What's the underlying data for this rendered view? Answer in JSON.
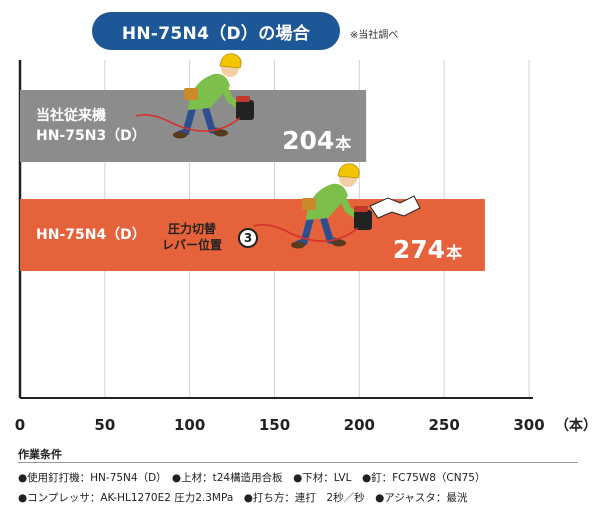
{
  "header": {
    "title": "HN-75N4（D）の場合",
    "source_note": "※当社調べ"
  },
  "colors": {
    "title_bg": "#1d5797",
    "bar_previous": "#8c8c8c",
    "bar_new": "#e6623b"
  },
  "icons": [
    "worker-with-nailer-icon",
    "worker-with-nailer-icon",
    "lever-position-3-badge"
  ],
  "chart_data": {
    "type": "bar",
    "orientation": "horizontal",
    "categories": [
      "当社従来機\nHN-75N3（D）",
      "HN-75N4（D）"
    ],
    "category_label_lines": [
      [
        "当社従来機",
        "HN-75N3（D）"
      ],
      [
        "HN-75N4（D）"
      ]
    ],
    "values": [
      204,
      274
    ],
    "value_labels": [
      "204",
      "274"
    ],
    "value_unit": "本",
    "x_ticks": [
      "0",
      "50",
      "100",
      "150",
      "200",
      "250",
      "300"
    ],
    "x_unit_label": "（本）",
    "xlim": [
      0,
      300
    ],
    "grid": true,
    "annotation": {
      "lines": [
        "圧力切替",
        "レバー位置"
      ],
      "badge": "3"
    }
  },
  "conditions": {
    "title": "作業条件",
    "lines": [
      "●使用釘打機：HN-75N4（D）　●上材：t24構造用合板　●下材：LVL　●釘：FC75W8（CN75）",
      "●コンプレッサ：AK-HL1270E2 圧力2.3MPa　●打ち方：連打　2秒／秒　●アジャスタ：最洸"
    ]
  }
}
